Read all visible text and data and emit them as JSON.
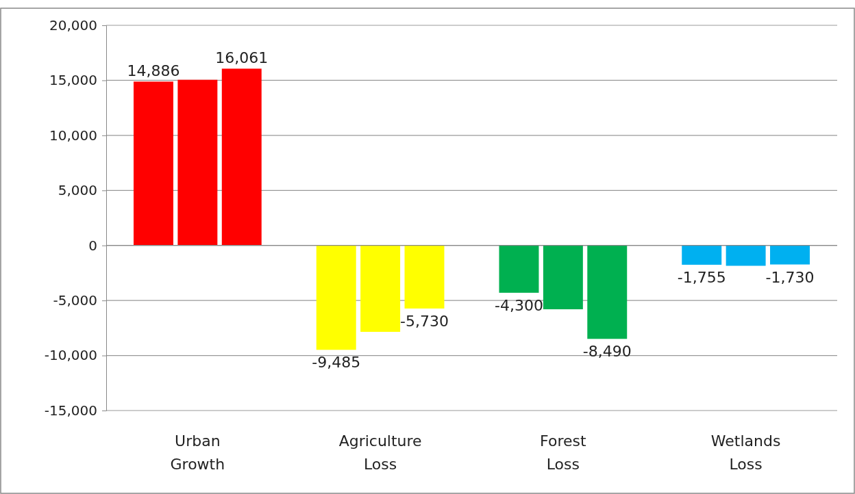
{
  "chart_data": {
    "type": "bar",
    "categories": [
      "Urban Growth",
      "Agriculture Loss",
      "Forest Loss",
      "Wetlands Loss"
    ],
    "series": [
      {
        "colors": [
          "#ff0000",
          "#ffff00",
          "#00b050",
          "#00b0f0"
        ],
        "values": [
          14886,
          -9485,
          -4300,
          -1755
        ],
        "value_labels": [
          "14,886",
          "-9,485",
          "-4,300",
          "-1,755"
        ]
      },
      {
        "colors": [
          "#ff0000",
          "#ffff00",
          "#00b050",
          "#00b0f0"
        ],
        "values": [
          15050,
          -7850,
          -5800,
          -1850
        ],
        "value_labels": [
          null,
          null,
          null,
          null
        ]
      },
      {
        "colors": [
          "#ff0000",
          "#ffff00",
          "#00b050",
          "#00b0f0"
        ],
        "values": [
          16061,
          -5730,
          -8490,
          -1730
        ],
        "value_labels": [
          "16,061",
          "-5,730",
          "-8,490",
          "-1,730"
        ]
      }
    ],
    "ylim": [
      -15000,
      20000
    ],
    "yticks": [
      {
        "value": -15000,
        "label": "-15,000"
      },
      {
        "value": -10000,
        "label": "-10,000"
      },
      {
        "value": -5000,
        "label": "-5,000"
      },
      0,
      {
        "value": 5000,
        "label": "5,000"
      },
      {
        "value": 10000,
        "label": "10,000"
      },
      {
        "value": 15000,
        "label": "15,000"
      },
      {
        "value": 20000,
        "label": "20,000"
      }
    ],
    "grid": "y"
  }
}
